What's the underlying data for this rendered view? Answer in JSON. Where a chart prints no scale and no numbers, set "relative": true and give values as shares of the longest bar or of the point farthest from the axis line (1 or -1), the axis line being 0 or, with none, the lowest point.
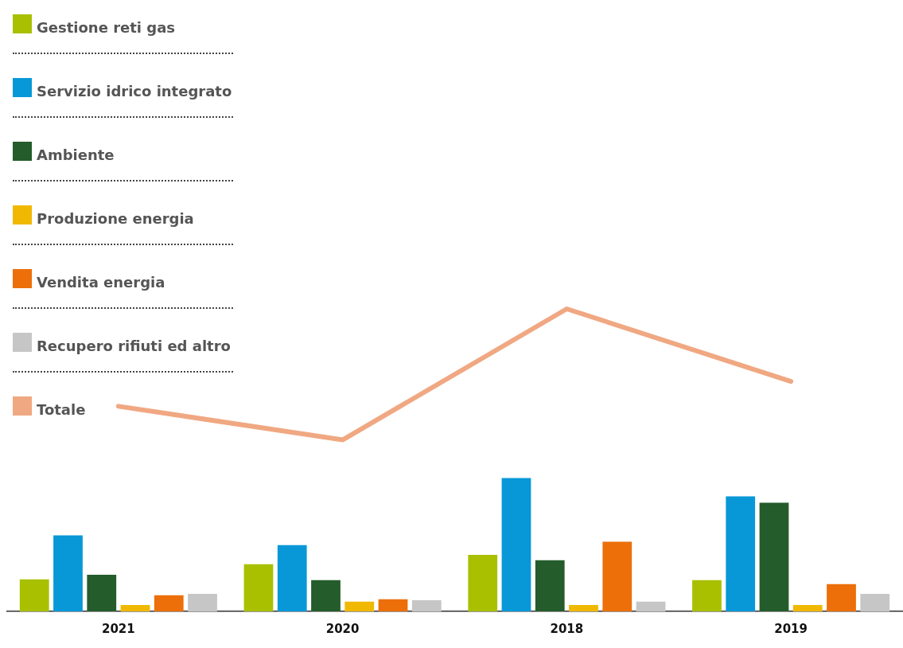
{
  "chart_data": {
    "type": "bar",
    "relative": true,
    "legend": "top left",
    "grid": false,
    "categories": [
      "2021",
      "2020",
      "2018",
      "2019"
    ],
    "series": [
      {
        "name": "Gestione reti gas",
        "color": "#a9c000",
        "values": [
          0.106,
          0.156,
          0.187,
          0.103
        ]
      },
      {
        "name": "Servizio idrico integrato",
        "color": "#0898d8",
        "values": [
          0.251,
          0.219,
          0.441,
          0.38
        ]
      },
      {
        "name": "Ambiente",
        "color": "#245c2b",
        "values": [
          0.121,
          0.103,
          0.169,
          0.359
        ]
      },
      {
        "name": "Produzione energia",
        "color": "#f0b800",
        "values": [
          0.021,
          0.032,
          0.021,
          0.021
        ]
      },
      {
        "name": "Vendita energia",
        "color": "#ec6f09",
        "values": [
          0.053,
          0.04,
          0.23,
          0.09
        ]
      },
      {
        "name": "Recupero rifiuti ed altro",
        "color": "#c6c6c6",
        "values": [
          0.058,
          0.037,
          0.032,
          0.058
        ]
      },
      {
        "name": "Totale",
        "type": "line",
        "color": "#f0a882",
        "values": [
          0.678,
          0.567,
          1,
          0.76
        ]
      }
    ]
  }
}
